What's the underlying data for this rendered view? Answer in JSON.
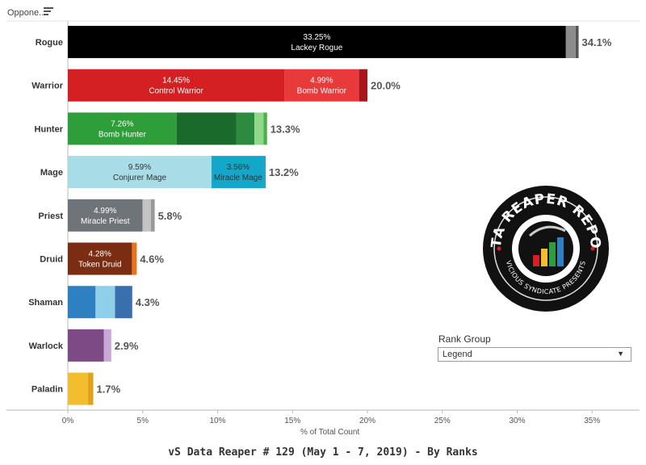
{
  "header": {
    "column_label": "Oppone.."
  },
  "footer": {
    "title": "vS Data Reaper #  129 (May 1 - 7, 2019) - By Ranks"
  },
  "filter": {
    "label": "Rank Group",
    "selected": "Legend"
  },
  "logo": {
    "top_text": "DATA REAPER REPORT",
    "bottom_text": "VICIOUS SYNDICATE PRESENTS"
  },
  "chart_data": {
    "type": "bar",
    "orientation": "horizontal",
    "stacked": true,
    "xlabel": "% of Total Count",
    "xlim": [
      0,
      37
    ],
    "xticks": [
      "0%",
      "5%",
      "10%",
      "15%",
      "20%",
      "25%",
      "30%",
      "35%"
    ],
    "grid": false,
    "categories": [
      "Rogue",
      "Warrior",
      "Hunter",
      "Mage",
      "Priest",
      "Druid",
      "Shaman",
      "Warlock",
      "Paladin"
    ],
    "rows": [
      {
        "class": "Rogue",
        "total": 34.1,
        "total_label": "34.1%",
        "segments": [
          {
            "value": 33.25,
            "color": "#000000",
            "label_pct": "33.25%",
            "label_name": "Lackey Rogue",
            "label_color": "#ffffff"
          },
          {
            "value": 0.65,
            "color": "#8c8c8c"
          },
          {
            "value": 0.2,
            "color": "#555555"
          }
        ]
      },
      {
        "class": "Warrior",
        "total": 20.0,
        "total_label": "20.0%",
        "segments": [
          {
            "value": 14.45,
            "color": "#d42023",
            "label_pct": "14.45%",
            "label_name": "Control Warrior",
            "label_color": "#ffffff"
          },
          {
            "value": 4.99,
            "color": "#e8393b",
            "label_pct": "4.99%",
            "label_name": "Bomb Warrior",
            "label_color": "#ffffff"
          },
          {
            "value": 0.56,
            "color": "#a8151a"
          }
        ]
      },
      {
        "class": "Hunter",
        "total": 13.3,
        "total_label": "13.3%",
        "segments": [
          {
            "value": 7.26,
            "color": "#2e9e3a",
            "label_pct": "7.26%",
            "label_name": "Bomb Hunter",
            "label_color": "#ffffff"
          },
          {
            "value": 4.0,
            "color": "#1a6a2c"
          },
          {
            "value": 1.2,
            "color": "#2d8b3f"
          },
          {
            "value": 0.6,
            "color": "#8fd88a"
          },
          {
            "value": 0.24,
            "color": "#4ab04a"
          }
        ]
      },
      {
        "class": "Mage",
        "total": 13.2,
        "total_label": "13.2%",
        "segments": [
          {
            "value": 9.59,
            "color": "#a8dde8",
            "label_pct": "9.59%",
            "label_name": "Conjurer Mage",
            "label_color": "#333333"
          },
          {
            "value": 3.56,
            "color": "#14a7c9",
            "label_pct": "3.56%",
            "label_name": "Miracle Mage",
            "label_color": "#333333"
          },
          {
            "value": 0.05,
            "color": "#0f8aa8"
          }
        ]
      },
      {
        "class": "Priest",
        "total": 5.8,
        "total_label": "5.8%",
        "segments": [
          {
            "value": 4.99,
            "color": "#6f7479",
            "label_pct": "4.99%",
            "label_name": "Miracle Priest",
            "label_color": "#ffffff"
          },
          {
            "value": 0.55,
            "color": "#c4c4c4"
          },
          {
            "value": 0.26,
            "color": "#9a9a9a"
          }
        ]
      },
      {
        "class": "Druid",
        "total": 4.6,
        "total_label": "4.6%",
        "segments": [
          {
            "value": 4.28,
            "color": "#7a2d12",
            "label_pct": "4.28%",
            "label_name": "Token Druid",
            "label_color": "#ffffff"
          },
          {
            "value": 0.32,
            "color": "#e8731c"
          }
        ]
      },
      {
        "class": "Shaman",
        "total": 4.3,
        "total_label": "4.3%",
        "segments": [
          {
            "value": 1.85,
            "color": "#2f80c0"
          },
          {
            "value": 1.3,
            "color": "#8fd0e8"
          },
          {
            "value": 1.15,
            "color": "#3a6fae"
          }
        ]
      },
      {
        "class": "Warlock",
        "total": 2.9,
        "total_label": "2.9%",
        "segments": [
          {
            "value": 2.4,
            "color": "#7d4a86"
          },
          {
            "value": 0.5,
            "color": "#c8a8d8"
          }
        ]
      },
      {
        "class": "Paladin",
        "total": 1.7,
        "total_label": "1.7%",
        "segments": [
          {
            "value": 1.35,
            "color": "#f2be2e"
          },
          {
            "value": 0.35,
            "color": "#e0a21a"
          }
        ]
      }
    ]
  }
}
